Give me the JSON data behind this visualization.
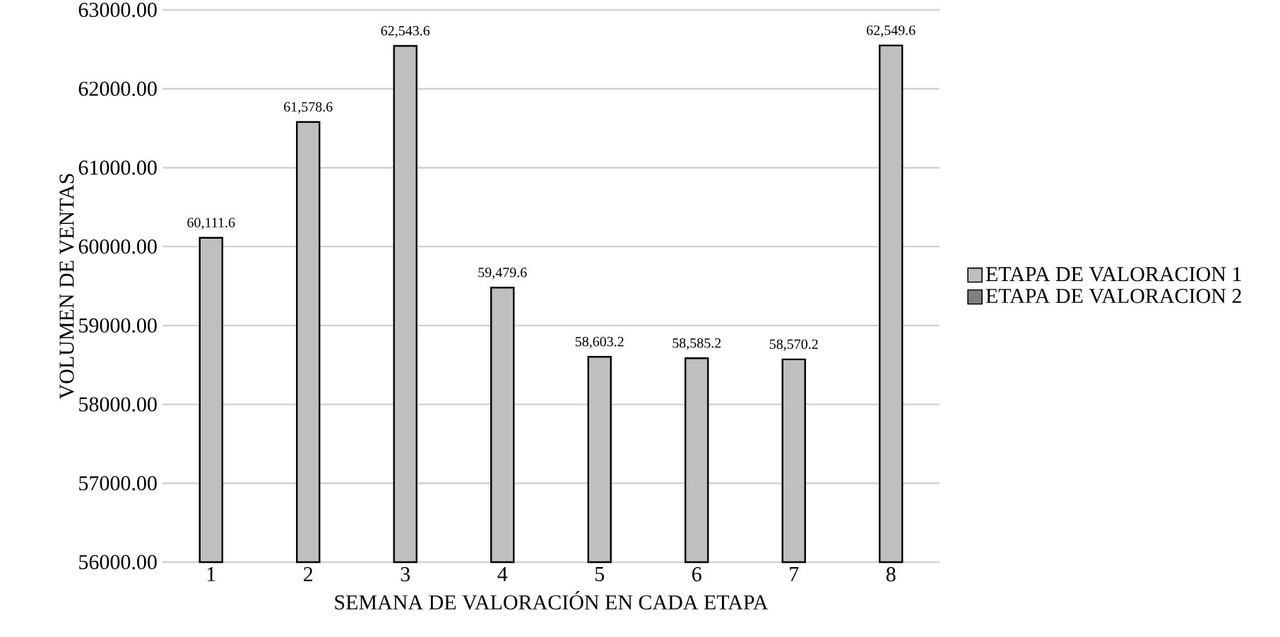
{
  "chart_data": {
    "type": "bar",
    "xlabel": "SEMANA DE VALORACIÓN EN CADA ETAPA",
    "ylabel": "VOLUMEN DE VENTAS",
    "categories": [
      "1",
      "2",
      "3",
      "4",
      "5",
      "6",
      "7",
      "8"
    ],
    "series": [
      {
        "name": "ETAPA DE VALORACION 1",
        "color": "#bfbfbf",
        "values": [
          60111.6,
          61578.6,
          62543.6,
          59479.6,
          58603.2,
          58585.2,
          58570.2,
          62549.6
        ],
        "value_labels": [
          "60,111.6",
          "61,578.6",
          "62,543.6",
          "59,479.6",
          "58,603.2",
          "58,585.2",
          "58,570.2",
          "62,549.6"
        ]
      },
      {
        "name": "ETAPA DE VALORACION 2",
        "color": "#808080",
        "values": [
          null,
          null,
          null,
          null,
          null,
          null,
          null,
          null
        ]
      }
    ],
    "ylim": [
      56000,
      63000
    ],
    "yticks": [
      {
        "value": 56000,
        "label": "56000.00"
      },
      {
        "value": 57000,
        "label": "57000.00"
      },
      {
        "value": 58000,
        "label": "58000.00"
      },
      {
        "value": 59000,
        "label": "59000.00"
      },
      {
        "value": 60000,
        "label": "60000.00"
      },
      {
        "value": 61000,
        "label": "61000.00"
      },
      {
        "value": 62000,
        "label": "62000.00"
      },
      {
        "value": 63000,
        "label": "63000.00"
      }
    ],
    "grid": "y",
    "legend": "right"
  }
}
